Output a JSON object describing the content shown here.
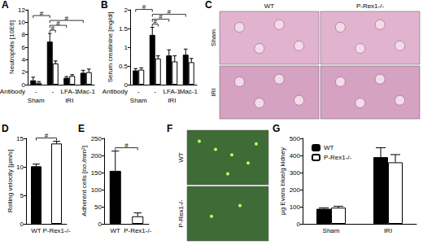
{
  "chart_data": [
    {
      "panel": "A",
      "type": "bar",
      "y_label": "Neutrophils [10E6]",
      "categories": [
        "-",
        "-",
        "LFA-1",
        "Mac-1"
      ],
      "category_label": "Antibody",
      "groups": [
        {
          "label": "Sham",
          "from": 0,
          "to": 0
        },
        {
          "label": "IRI",
          "from": 1,
          "to": 3
        }
      ],
      "series": [
        {
          "name": "WT",
          "color": "#000000",
          "values": [
            0.7,
            6.9,
            1.1,
            1.9
          ],
          "errors": [
            0.5,
            1.3,
            0.2,
            0.4
          ]
        },
        {
          "name": "P-Rex1-/-",
          "color": "#ffffff",
          "values": [
            0.3,
            3.4,
            1.4,
            2.0
          ],
          "errors": [
            0.2,
            0.4,
            0.2,
            0.5
          ]
        }
      ],
      "ylim": [
        0,
        12
      ],
      "yticks": [
        0,
        2,
        4,
        6,
        8,
        10,
        12
      ],
      "grid": false,
      "annotations": [
        {
          "text": "#",
          "from": {
            "category": 1,
            "series": 0
          },
          "to": {
            "category": 1,
            "series": 1
          }
        },
        {
          "text": "#",
          "from": {
            "category": 1,
            "series": 0
          },
          "to": {
            "category": 2,
            "series": 0
          }
        },
        {
          "text": "#",
          "from": {
            "category": 1,
            "series": 0
          },
          "to": {
            "category": 3,
            "series": 0
          }
        },
        {
          "text": "#",
          "from": {
            "category": 0,
            "series": 0
          },
          "to": {
            "category": 1,
            "series": 0
          }
        }
      ]
    },
    {
      "panel": "B",
      "type": "bar",
      "y_label": "Serum creatinine [mg/dl]",
      "categories": [
        "-",
        "-",
        "LFA-1",
        "Mac-1"
      ],
      "category_label": "Antibody",
      "groups": [
        {
          "label": "Sham",
          "from": 0,
          "to": 0
        },
        {
          "label": "IRI",
          "from": 1,
          "to": 3
        }
      ],
      "series": [
        {
          "name": "WT",
          "color": "#000000",
          "values": [
            0.38,
            1.33,
            0.78,
            0.8
          ],
          "errors": [
            0.05,
            0.2,
            0.15,
            0.15
          ]
        },
        {
          "name": "P-Rex1-/-",
          "color": "#ffffff",
          "values": [
            0.4,
            0.7,
            0.62,
            0.6
          ],
          "errors": [
            0.05,
            0.07,
            0.15,
            0.1
          ]
        }
      ],
      "ylim": [
        0,
        2
      ],
      "yticks": [
        0,
        0.5,
        1,
        1.5,
        2
      ],
      "grid": false,
      "annotations": [
        {
          "text": "#",
          "from": {
            "category": 1,
            "series": 0
          },
          "to": {
            "category": 1,
            "series": 1
          }
        },
        {
          "text": "#",
          "from": {
            "category": 1,
            "series": 0
          },
          "to": {
            "category": 2,
            "series": 0
          }
        },
        {
          "text": "#",
          "from": {
            "category": 1,
            "series": 0
          },
          "to": {
            "category": 3,
            "series": 0
          }
        },
        {
          "text": "#",
          "from": {
            "category": 0,
            "series": 0
          },
          "to": {
            "category": 1,
            "series": 0
          }
        }
      ]
    },
    {
      "panel": "C",
      "type": "image",
      "columns": [
        "WT",
        "P-Rex1-/-"
      ],
      "rows": [
        "Sham",
        "IRI"
      ]
    },
    {
      "panel": "D",
      "type": "bar",
      "y_label": "Rolling velocity [µm/s]",
      "categories": [
        "WT",
        "P-Rex1-/-"
      ],
      "values": [
        10.1,
        14.1
      ],
      "errors": [
        0.4,
        0.4
      ],
      "colors": [
        "#000000",
        "#ffffff"
      ],
      "ylim": [
        0,
        15
      ],
      "yticks": [
        0,
        5,
        10,
        15
      ],
      "grid": false,
      "annotations": [
        {
          "text": "#",
          "from": {
            "category": 0
          },
          "to": {
            "category": 1
          }
        }
      ]
    },
    {
      "panel": "E",
      "type": "bar",
      "y_label": "Adherent cells [no./mm²]",
      "categories": [
        "WT",
        "P-Rex1-/-"
      ],
      "values": [
        155,
        22
      ],
      "errors": [
        58,
        10
      ],
      "colors": [
        "#000000",
        "#ffffff"
      ],
      "ylim": [
        0,
        250
      ],
      "yticks": [
        0,
        50,
        100,
        150,
        200,
        250
      ],
      "grid": false,
      "annotations": [
        {
          "text": "#",
          "from": {
            "category": 0
          },
          "to": {
            "category": 1
          }
        }
      ]
    },
    {
      "panel": "F",
      "type": "image",
      "rows": [
        "WT",
        "P-Rex1-/-"
      ]
    },
    {
      "panel": "G",
      "type": "bar",
      "y_label": "µg Evans blue/g kidney",
      "categories": [
        "Sham",
        "IRI"
      ],
      "series": [
        {
          "name": "WT",
          "color": "#000000",
          "values": [
            88,
            390
          ],
          "errors": [
            6,
            55
          ]
        },
        {
          "name": "P-Rex1-/-",
          "color": "#ffffff",
          "values": [
            95,
            360
          ],
          "errors": [
            8,
            45
          ]
        }
      ],
      "ylim": [
        0,
        500
      ],
      "yticks": [
        0,
        100,
        200,
        300,
        400,
        500
      ],
      "grid": false,
      "legend": "top-left"
    }
  ]
}
